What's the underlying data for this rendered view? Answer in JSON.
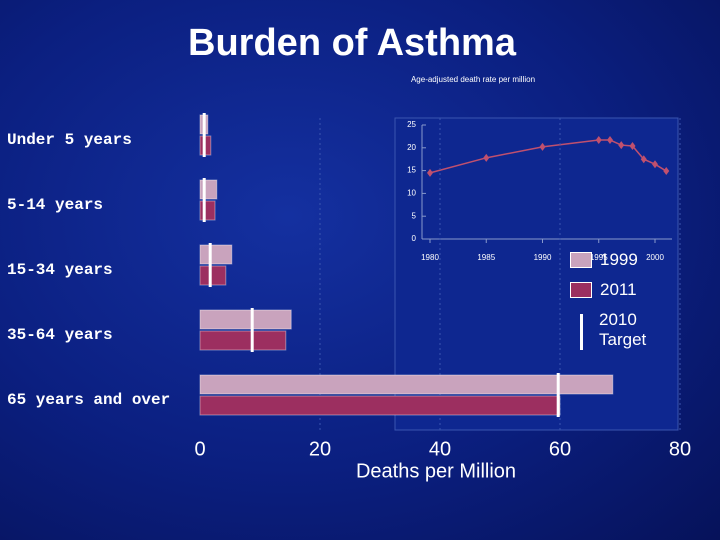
{
  "chart_data": [
    {
      "type": "hbar",
      "title": "Burden of Asthma",
      "x_label": "Deaths per Million",
      "categories": [
        "Under 5 years",
        "5-14 years",
        "15-34 years",
        "35-64 years",
        "65 years and over"
      ],
      "series": [
        {
          "name": "1999",
          "color": "#c9a3bd",
          "values": [
            1.3,
            2.8,
            5.3,
            15.2,
            68.8
          ]
        },
        {
          "name": "2011",
          "color": "#9c2f60",
          "values": [
            1.8,
            2.5,
            4.3,
            14.3,
            60
          ]
        },
        {
          "name": "2010 Target",
          "color": "#ffffff",
          "marker": "line",
          "values": [
            0.7,
            0.7,
            1.7,
            8.7,
            59.7
          ]
        }
      ],
      "xlim": [
        0,
        80
      ],
      "xticks": [
        0,
        20,
        40,
        60,
        80
      ],
      "grid": true
    },
    {
      "type": "line",
      "title": "Age-adjusted death rate per million",
      "color": "#c0506e",
      "x": [
        1980,
        1985,
        1990,
        1995,
        1996,
        1997,
        1998,
        1999,
        2000,
        2001
      ],
      "values": [
        14.5,
        17.8,
        20.2,
        21.7,
        21.7,
        20.6,
        20.4,
        17.5,
        16.4,
        14.9
      ],
      "xlim": [
        1979,
        2002
      ],
      "xticks": [
        1980,
        1985,
        1990,
        1995,
        2000
      ],
      "ylim": [
        0,
        25
      ],
      "yticks": [
        0,
        5,
        10,
        15,
        20,
        25
      ]
    }
  ]
}
